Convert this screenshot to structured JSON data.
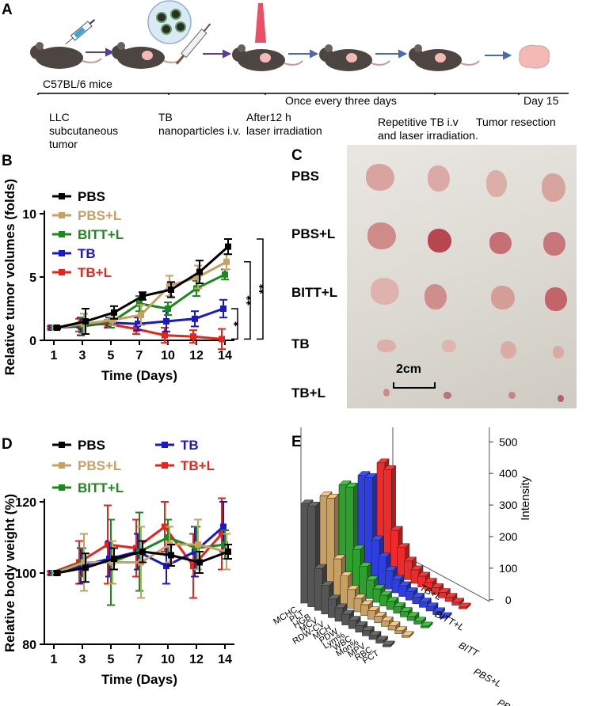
{
  "panels": {
    "a": "A",
    "b": "B",
    "c": "C",
    "d": "D",
    "e": "E"
  },
  "timeline": {
    "mouse_label": "C57BL/6 mice",
    "events": [
      "LLC\nsubcutaneous\ntumor",
      "TB\nnanoparticles i.v.",
      "After12 h\nlaser irradiation",
      "Once every three days",
      "Repetitive TB i.v\nand laser irradiation.",
      "Day 15",
      "Tumor resection"
    ]
  },
  "photo": {
    "rows": [
      "PBS",
      "PBS+L",
      "BITT+L",
      "TB",
      "TB+L"
    ],
    "scale_label": "2cm"
  },
  "chart_data": [
    {
      "type": "line",
      "title": "",
      "xlabel": "Time (Days)",
      "ylabel": "Relative tumor volumes (folds)",
      "x": [
        1,
        3,
        5,
        7,
        10,
        12,
        14
      ],
      "ylim": [
        0,
        10
      ],
      "yticks": [
        0,
        5,
        10
      ],
      "series": [
        {
          "name": "PBS",
          "color": "#000000",
          "values": [
            1,
            1.5,
            2.2,
            3.5,
            4.0,
            5.4,
            7.4
          ],
          "err": [
            0.1,
            1,
            0.5,
            0.3,
            0.6,
            0.9,
            0.6
          ]
        },
        {
          "name": "PBS+L",
          "color": "#c7a062",
          "values": [
            1,
            1.3,
            1.6,
            2.0,
            4.3,
            5.0,
            6.2
          ],
          "err": [
            0.1,
            0.8,
            0.4,
            0.8,
            0.8,
            0.9,
            0.6
          ]
        },
        {
          "name": "BITT+L",
          "color": "#1a8a1a",
          "values": [
            1,
            1.2,
            1.4,
            2.9,
            2.5,
            4.1,
            5.2
          ],
          "err": [
            0.1,
            0.6,
            0.4,
            0.6,
            0.5,
            0.6,
            0.4
          ]
        },
        {
          "name": "TB",
          "color": "#1919c8",
          "values": [
            1,
            1.1,
            1.4,
            1.3,
            1.5,
            1.7,
            2.5
          ],
          "err": [
            0.1,
            0.7,
            0.4,
            0.5,
            0.8,
            0.6,
            0.7
          ]
        },
        {
          "name": "TB+L",
          "color": "#e8231a",
          "values": [
            1,
            1.2,
            1.3,
            0.9,
            0.4,
            0.3,
            0.1
          ],
          "err": [
            0.1,
            0.5,
            0.3,
            0.4,
            0.6,
            0.5,
            0.8
          ]
        }
      ],
      "significance": [
        "*",
        "**",
        "**"
      ]
    },
    {
      "type": "line",
      "title": "",
      "xlabel": "Time (Days)",
      "ylabel": "Relative body weight (%)",
      "x": [
        1,
        3,
        5,
        7,
        10,
        12,
        14
      ],
      "ylim": [
        80,
        120
      ],
      "yticks": [
        80,
        100,
        120
      ],
      "series": [
        {
          "name": "PBS",
          "color": "#000000",
          "values": [
            100,
            101.5,
            104,
            106,
            105,
            103,
            106
          ],
          "err": [
            0.5,
            4,
            3,
            3,
            3,
            3,
            2
          ]
        },
        {
          "name": "PBS+L",
          "color": "#c7a062",
          "values": [
            100,
            103,
            103,
            103,
            108,
            108,
            106
          ],
          "err": [
            0.5,
            8,
            6,
            10,
            5,
            7,
            5
          ]
        },
        {
          "name": "BITT+L",
          "color": "#1a8a1a",
          "values": [
            100,
            103,
            103,
            106,
            110,
            107,
            108
          ],
          "err": [
            0.5,
            4,
            12,
            11,
            5,
            6,
            4
          ]
        },
        {
          "name": "TB",
          "color": "#1919c8",
          "values": [
            100,
            102,
            104,
            106,
            102,
            106,
            113
          ],
          "err": [
            0.5,
            5,
            5,
            5,
            5,
            7,
            7
          ]
        },
        {
          "name": "TB+L",
          "color": "#e8231a",
          "values": [
            100,
            103,
            108,
            107,
            113,
            102,
            111
          ],
          "err": [
            0.5,
            6,
            11,
            8,
            7,
            9,
            10
          ]
        }
      ]
    },
    {
      "type": "bar",
      "title": "",
      "zlabel": "Intensity",
      "zlim": [
        0,
        500
      ],
      "zticks": [
        0,
        100,
        200,
        300,
        400,
        500
      ],
      "categories": [
        "MCHC",
        "PLT",
        "HGB",
        "MCV",
        "RDW",
        "MCH",
        "PDW",
        "Lym%",
        "WBC",
        "Mon%",
        "MPV",
        "RBC",
        "PCT"
      ],
      "category_labels": [
        "MCHC",
        "PLT",
        "HGB",
        "MCV",
        "RDW-CV",
        "MCH",
        "PDW",
        "Lym%",
        "WBC",
        "Mon%",
        "MPV",
        "RBC",
        "PCT"
      ],
      "series": [
        {
          "name": "PBS",
          "color": "#555555",
          "values": [
            330,
            335,
            140,
            95,
            62,
            45,
            36,
            28,
            22,
            18,
            14,
            10,
            6
          ]
        },
        {
          "name": "PBS+L",
          "color": "#c7a062",
          "values": [
            325,
            330,
            140,
            95,
            62,
            45,
            36,
            28,
            22,
            18,
            14,
            10,
            6
          ]
        },
        {
          "name": "BITT",
          "color": "#2ea02e",
          "values": [
            330,
            335,
            140,
            95,
            62,
            45,
            36,
            28,
            22,
            18,
            14,
            10,
            6
          ]
        },
        {
          "name": "BITT+L",
          "color": "#2e3fe0",
          "values": [
            330,
            335,
            140,
            95,
            62,
            45,
            36,
            28,
            22,
            18,
            14,
            10,
            6
          ]
        },
        {
          "name": "TB+L",
          "color": "#ee2a2a",
          "values": [
            340,
            330,
            140,
            95,
            62,
            45,
            36,
            28,
            22,
            18,
            14,
            10,
            6
          ]
        }
      ],
      "depth_labels": [
        "PBS",
        "PBS+L",
        "BITT",
        "BITT+L",
        "TB+L"
      ]
    }
  ]
}
